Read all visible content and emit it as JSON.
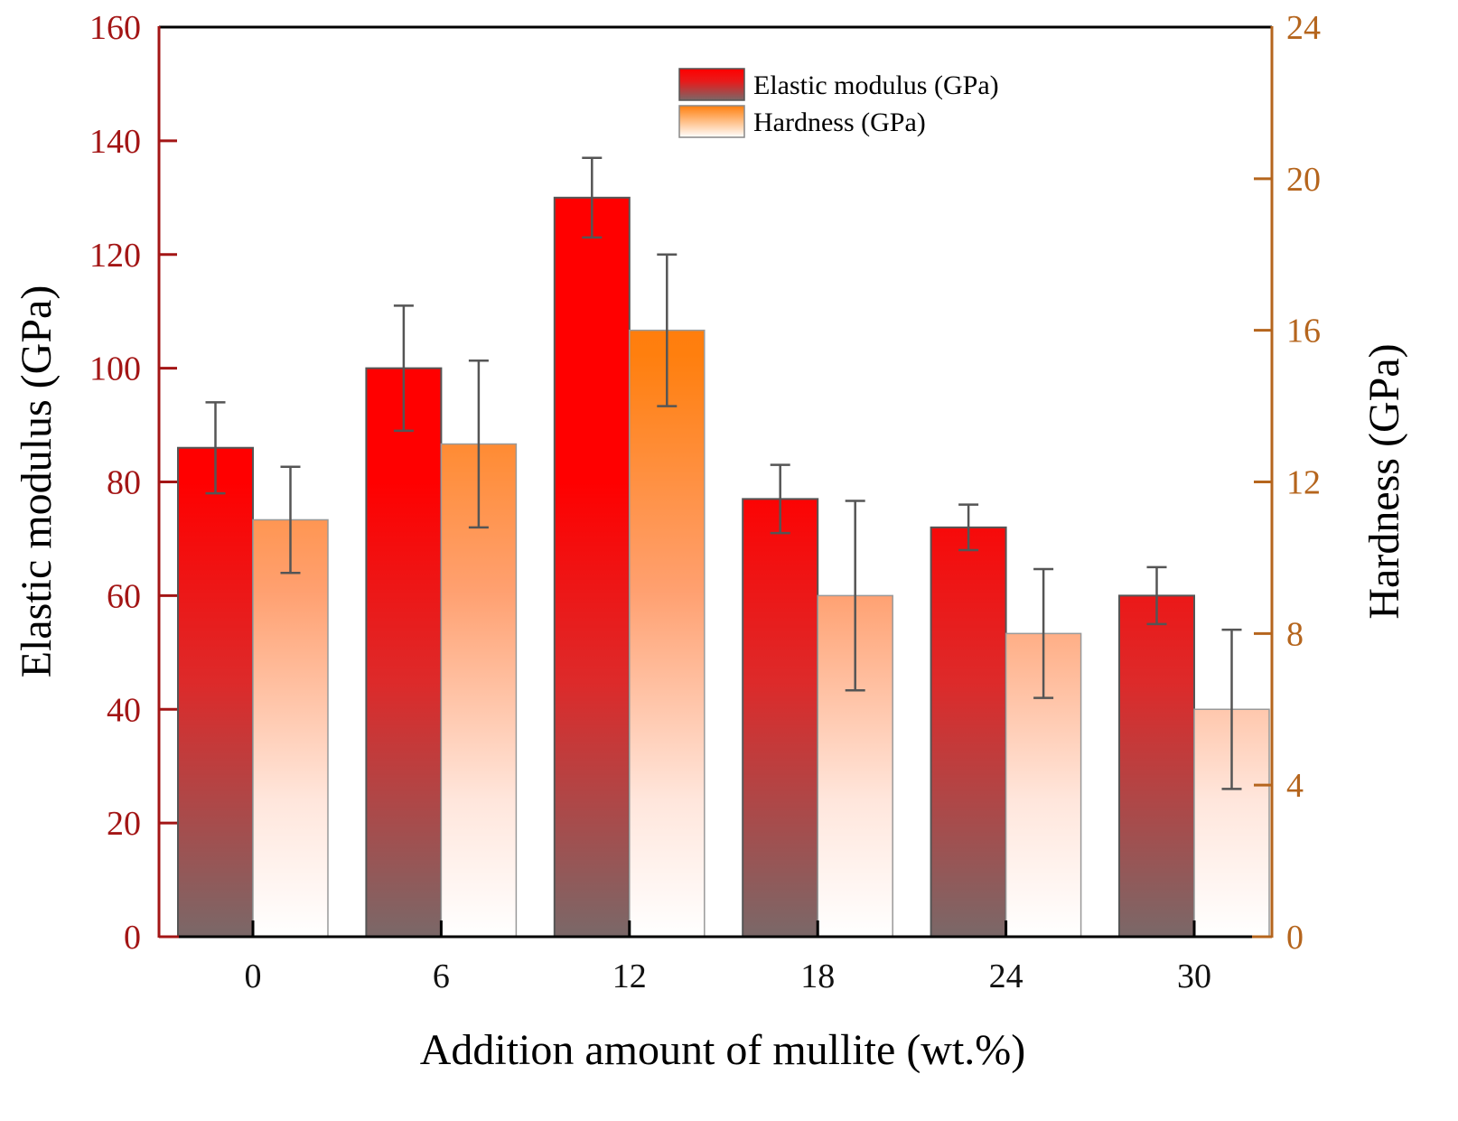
{
  "chart_data": {
    "type": "bar",
    "title": "",
    "xlabel": "Addition amount of mullite (wt.%)",
    "ylabel": "Elastic modulus (GPa)",
    "y2label": "Hardness (GPa)",
    "categories": [
      "0",
      "6",
      "12",
      "18",
      "24",
      "30"
    ],
    "ylim": [
      0,
      160
    ],
    "y2lim": [
      0,
      24
    ],
    "yticks": [
      0,
      20,
      40,
      60,
      80,
      100,
      120,
      140,
      160
    ],
    "y2ticks": [
      0,
      4,
      8,
      12,
      16,
      20,
      24
    ],
    "grid": false,
    "legend_position": "top-center",
    "series": [
      {
        "name": "Elastic modulus (GPa)",
        "axis": "left",
        "values": [
          86,
          100,
          130,
          77,
          72,
          60
        ],
        "errors": [
          8,
          11,
          7,
          6,
          4,
          5
        ],
        "gradient_top": "#ff0000",
        "gradient_bottom": "#7a6a6a"
      },
      {
        "name": "Hardness (GPa)",
        "axis": "right",
        "values": [
          11.0,
          13.0,
          16.0,
          9.0,
          8.0,
          6.0
        ],
        "errors": [
          1.4,
          2.2,
          2.0,
          2.5,
          1.7,
          2.1
        ],
        "gradient_top": "#ff7f0e",
        "gradient_bottom": "#ffffff"
      }
    ],
    "colors": {
      "left_axis": "#a31515",
      "right_axis": "#b5651d",
      "error_bar": "#555555"
    }
  }
}
